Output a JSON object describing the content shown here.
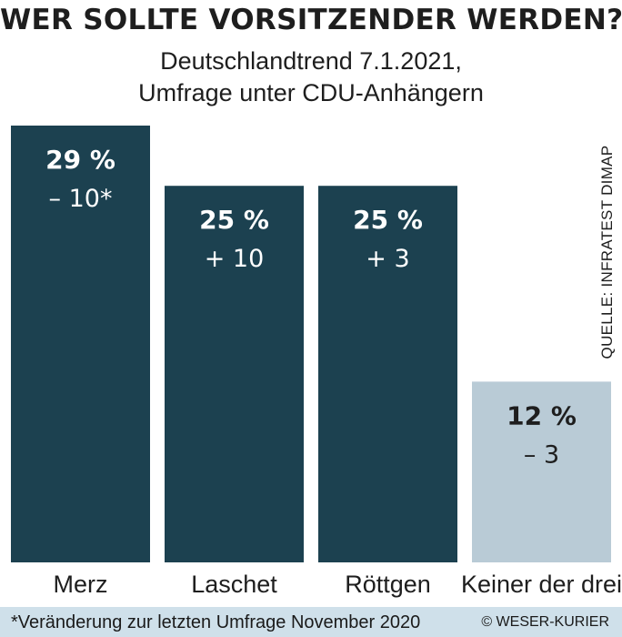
{
  "header": {
    "title": "WER SOLLTE VORSITZENDER WERDEN?",
    "subtitle_line1": "Deutschlandtrend 7.1.2021,",
    "subtitle_line2": "Umfrage unter CDU-Anhängern"
  },
  "source": "QUELLE: INFRATEST DIMAP",
  "footer": {
    "footnote": "*Veränderung zur letzten Umfrage November 2020",
    "credit": "© WESER-KURIER"
  },
  "colors": {
    "bar_primary": "#1c4150",
    "bar_secondary": "#b9cbd6",
    "footer_bg": "#cfe0ea",
    "text_on_dark": "#ffffff",
    "text_on_light": "#1e1e1e"
  },
  "chart_data": {
    "type": "bar",
    "categories": [
      "Merz",
      "Laschet",
      "Röttgen",
      "Keiner der drei"
    ],
    "values": [
      29,
      25,
      25,
      12
    ],
    "value_labels": [
      "29 %",
      "25 %",
      "25 %",
      "12 %"
    ],
    "change_labels": [
      "– 10*",
      "+ 10",
      "+ 3",
      "– 3"
    ],
    "changes": [
      -10,
      10,
      3,
      -3
    ],
    "unit": "%",
    "ylim": [
      0,
      29
    ],
    "grid": false,
    "legend": "none"
  }
}
